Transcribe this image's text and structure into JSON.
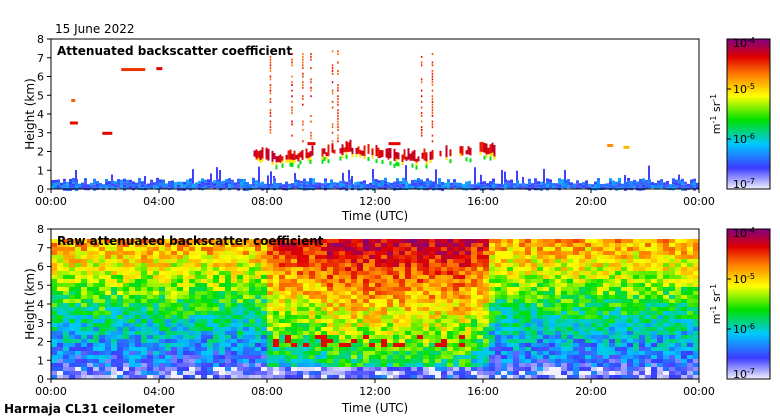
{
  "page": {
    "date": "15 June 2022",
    "footer": "Harmaja CL31 ceilometer"
  },
  "chart_data": [
    {
      "type": "heatmap",
      "title": "Attenuated backscatter coefficient",
      "xlabel": "Time (UTC)",
      "ylabel": "Height (km)",
      "x_ticks": [
        "00:00",
        "04:00",
        "08:00",
        "12:00",
        "16:00",
        "20:00",
        "00:00"
      ],
      "y_ticks": [
        "0",
        "1",
        "2",
        "3",
        "4",
        "5",
        "6",
        "7",
        "8"
      ],
      "xlim_hours": [
        0,
        24
      ],
      "ylim_km": [
        0,
        8
      ],
      "colorbar": {
        "scale": "log",
        "range": [
          1e-07,
          0.0001
        ],
        "tick_exponents": [
          "-7",
          "-6",
          "-5",
          "-4"
        ],
        "unit": "m-1 sr-1"
      },
      "features": {
        "surface_layer_top_km": 0.5,
        "cloud_band": {
          "start_hours": 7.5,
          "end_hours": 16.5,
          "base_km": 1.6,
          "top_km": 2.6
        }
      }
    },
    {
      "type": "heatmap",
      "title": "Raw attenuated backscatter coefficient",
      "xlabel": "Time (UTC)",
      "ylabel": "Height (km)",
      "x_ticks": [
        "00:00",
        "04:00",
        "08:00",
        "12:00",
        "16:00",
        "20:00",
        "00:00"
      ],
      "y_ticks": [
        "0",
        "1",
        "2",
        "3",
        "4",
        "5",
        "6",
        "7",
        "8"
      ],
      "xlim_hours": [
        0,
        24
      ],
      "ylim_km": [
        0,
        8
      ],
      "colorbar": {
        "scale": "log",
        "range": [
          1e-07,
          0.0001
        ],
        "tick_exponents": [
          "-7",
          "-6",
          "-5",
          "-4"
        ],
        "unit": "m-1 sr-1"
      }
    }
  ],
  "colors": {
    "scale": [
      "#f2f2ff",
      "#3c3cff",
      "#00c8ff",
      "#00e000",
      "#ffff00",
      "#ff8000",
      "#e00000",
      "#800080"
    ]
  }
}
